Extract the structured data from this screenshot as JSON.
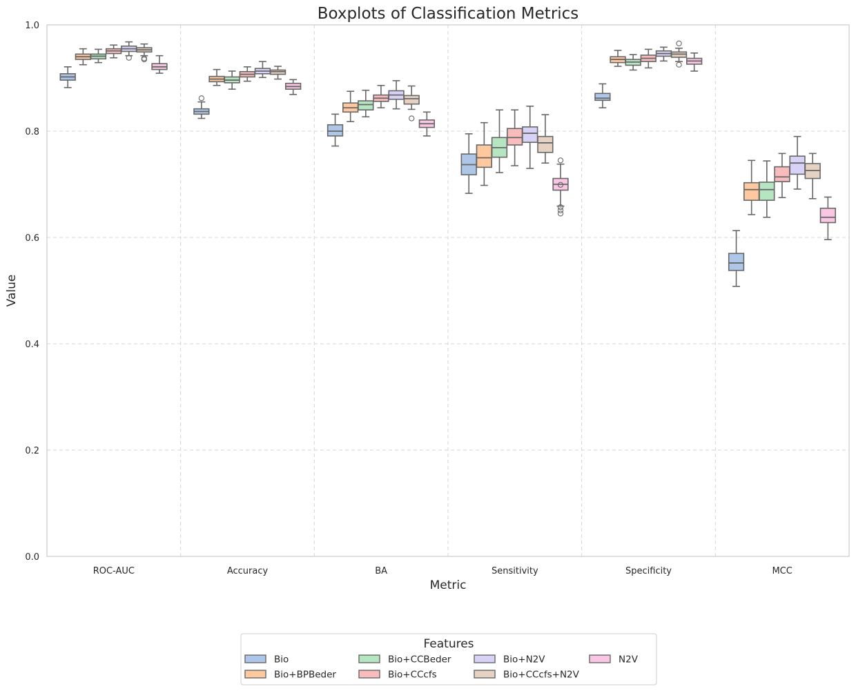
{
  "chart_data": {
    "type": "boxplot",
    "title": "Boxplots of Classification Metrics",
    "xlabel": "Metric",
    "ylabel": "Value",
    "ylim": [
      0.0,
      1.0
    ],
    "yticks": [
      "0.0",
      "0.2",
      "0.4",
      "0.6",
      "0.8",
      "1.0"
    ],
    "grid": true,
    "legend_placement": "bottom-center",
    "legend_title": "Features",
    "categories": [
      "ROC-AUC",
      "Accuracy",
      "BA",
      "Sensitivity",
      "Specificity",
      "MCC"
    ],
    "series": [
      {
        "name": "Bio",
        "color": "#aec7e8",
        "boxes": [
          {
            "whislo": 0.882,
            "q1": 0.896,
            "med": 0.902,
            "q3": 0.908,
            "whishi": 0.921,
            "fliers": []
          },
          {
            "whislo": 0.824,
            "q1": 0.832,
            "med": 0.837,
            "q3": 0.842,
            "whishi": 0.855,
            "fliers": [
              0.862
            ]
          },
          {
            "whislo": 0.772,
            "q1": 0.791,
            "med": 0.8,
            "q3": 0.812,
            "whishi": 0.832,
            "fliers": []
          },
          {
            "whislo": 0.683,
            "q1": 0.718,
            "med": 0.737,
            "q3": 0.757,
            "whishi": 0.795,
            "fliers": []
          },
          {
            "whislo": 0.844,
            "q1": 0.858,
            "med": 0.862,
            "q3": 0.871,
            "whishi": 0.889,
            "fliers": []
          },
          {
            "whislo": 0.508,
            "q1": 0.538,
            "med": 0.552,
            "q3": 0.57,
            "whishi": 0.613,
            "fliers": []
          }
        ]
      },
      {
        "name": "Bio+BPBeder",
        "color": "#ffc89e",
        "boxes": [
          {
            "whislo": 0.925,
            "q1": 0.935,
            "med": 0.94,
            "q3": 0.945,
            "whishi": 0.955,
            "fliers": []
          },
          {
            "whislo": 0.886,
            "q1": 0.893,
            "med": 0.898,
            "q3": 0.903,
            "whishi": 0.916,
            "fliers": []
          },
          {
            "whislo": 0.818,
            "q1": 0.836,
            "med": 0.844,
            "q3": 0.853,
            "whishi": 0.875,
            "fliers": []
          },
          {
            "whislo": 0.698,
            "q1": 0.732,
            "med": 0.75,
            "q3": 0.774,
            "whishi": 0.816,
            "fliers": []
          },
          {
            "whislo": 0.922,
            "q1": 0.929,
            "med": 0.935,
            "q3": 0.94,
            "whishi": 0.952,
            "fliers": []
          },
          {
            "whislo": 0.643,
            "q1": 0.67,
            "med": 0.69,
            "q3": 0.703,
            "whishi": 0.745,
            "fliers": []
          }
        ]
      },
      {
        "name": "Bio+CCBeder",
        "color": "#b5e5c1",
        "boxes": [
          {
            "whislo": 0.929,
            "q1": 0.936,
            "med": 0.941,
            "q3": 0.945,
            "whishi": 0.954,
            "fliers": []
          },
          {
            "whislo": 0.879,
            "q1": 0.891,
            "med": 0.896,
            "q3": 0.902,
            "whishi": 0.913,
            "fliers": []
          },
          {
            "whislo": 0.827,
            "q1": 0.84,
            "med": 0.85,
            "q3": 0.857,
            "whishi": 0.877,
            "fliers": []
          },
          {
            "whislo": 0.722,
            "q1": 0.751,
            "med": 0.769,
            "q3": 0.788,
            "whishi": 0.84,
            "fliers": []
          },
          {
            "whislo": 0.915,
            "q1": 0.924,
            "med": 0.93,
            "q3": 0.935,
            "whishi": 0.944,
            "fliers": []
          },
          {
            "whislo": 0.638,
            "q1": 0.67,
            "med": 0.69,
            "q3": 0.704,
            "whishi": 0.744,
            "fliers": []
          }
        ]
      },
      {
        "name": "Bio+CCcfs",
        "color": "#f8bcbd",
        "boxes": [
          {
            "whislo": 0.938,
            "q1": 0.946,
            "med": 0.951,
            "q3": 0.955,
            "whishi": 0.962,
            "fliers": []
          },
          {
            "whislo": 0.894,
            "q1": 0.902,
            "med": 0.907,
            "q3": 0.912,
            "whishi": 0.921,
            "fliers": []
          },
          {
            "whislo": 0.844,
            "q1": 0.856,
            "med": 0.862,
            "q3": 0.868,
            "whishi": 0.886,
            "fliers": []
          },
          {
            "whislo": 0.735,
            "q1": 0.774,
            "med": 0.788,
            "q3": 0.805,
            "whishi": 0.84,
            "fliers": []
          },
          {
            "whislo": 0.919,
            "q1": 0.931,
            "med": 0.937,
            "q3": 0.943,
            "whishi": 0.954,
            "fliers": []
          },
          {
            "whislo": 0.675,
            "q1": 0.705,
            "med": 0.714,
            "q3": 0.733,
            "whishi": 0.758,
            "fliers": []
          }
        ]
      },
      {
        "name": "Bio+N2V",
        "color": "#d9d2f7",
        "boxes": [
          {
            "whislo": 0.942,
            "q1": 0.95,
            "med": 0.955,
            "q3": 0.96,
            "whishi": 0.968,
            "fliers": [
              0.938
            ]
          },
          {
            "whislo": 0.901,
            "q1": 0.908,
            "med": 0.913,
            "q3": 0.918,
            "whishi": 0.931,
            "fliers": []
          },
          {
            "whislo": 0.842,
            "q1": 0.86,
            "med": 0.868,
            "q3": 0.876,
            "whishi": 0.895,
            "fliers": []
          },
          {
            "whislo": 0.73,
            "q1": 0.779,
            "med": 0.796,
            "q3": 0.808,
            "whishi": 0.847,
            "fliers": []
          },
          {
            "whislo": 0.932,
            "q1": 0.941,
            "med": 0.946,
            "q3": 0.951,
            "whishi": 0.958,
            "fliers": []
          },
          {
            "whislo": 0.691,
            "q1": 0.719,
            "med": 0.74,
            "q3": 0.753,
            "whishi": 0.79,
            "fliers": []
          }
        ]
      },
      {
        "name": "Bio+CCcfs+N2V",
        "color": "#e6d2c3",
        "boxes": [
          {
            "whislo": 0.942,
            "q1": 0.949,
            "med": 0.953,
            "q3": 0.957,
            "whishi": 0.964,
            "fliers": [
              0.937,
              0.935
            ]
          },
          {
            "whislo": 0.898,
            "q1": 0.907,
            "med": 0.912,
            "q3": 0.915,
            "whishi": 0.922,
            "fliers": []
          },
          {
            "whislo": 0.841,
            "q1": 0.851,
            "med": 0.861,
            "q3": 0.867,
            "whishi": 0.885,
            "fliers": [
              0.824
            ]
          },
          {
            "whislo": 0.74,
            "q1": 0.76,
            "med": 0.778,
            "q3": 0.79,
            "whishi": 0.831,
            "fliers": []
          },
          {
            "whislo": 0.931,
            "q1": 0.939,
            "med": 0.945,
            "q3": 0.949,
            "whishi": 0.956,
            "fliers": [
              0.925,
              0.965
            ]
          },
          {
            "whislo": 0.673,
            "q1": 0.711,
            "med": 0.726,
            "q3": 0.739,
            "whishi": 0.758,
            "fliers": []
          }
        ]
      },
      {
        "name": "N2V",
        "color": "#f9c7e4",
        "boxes": [
          {
            "whislo": 0.909,
            "q1": 0.916,
            "med": 0.921,
            "q3": 0.927,
            "whishi": 0.942,
            "fliers": []
          },
          {
            "whislo": 0.869,
            "q1": 0.879,
            "med": 0.884,
            "q3": 0.89,
            "whishi": 0.897,
            "fliers": []
          },
          {
            "whislo": 0.791,
            "q1": 0.807,
            "med": 0.814,
            "q3": 0.821,
            "whishi": 0.836,
            "fliers": []
          },
          {
            "whislo": 0.659,
            "q1": 0.689,
            "med": 0.7,
            "q3": 0.711,
            "whishi": 0.738,
            "fliers": [
              0.745,
              0.699,
              0.657,
              0.651,
              0.645
            ]
          },
          {
            "whislo": 0.913,
            "q1": 0.926,
            "med": 0.932,
            "q3": 0.937,
            "whishi": 0.947,
            "fliers": []
          },
          {
            "whislo": 0.596,
            "q1": 0.628,
            "med": 0.638,
            "q3": 0.655,
            "whishi": 0.676,
            "fliers": []
          }
        ]
      }
    ]
  }
}
